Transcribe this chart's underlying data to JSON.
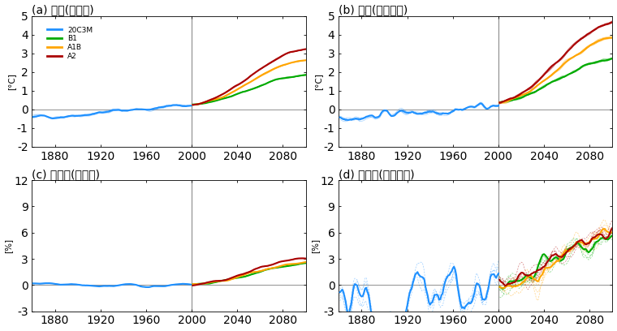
{
  "title_a": "(a) 기온(전지구)",
  "title_b": "(b) 기온(동아시아)",
  "title_c": "(c) 강수량(전지구)",
  "title_d": "(d) 강수량(동아시아)",
  "ylabel_temp": "[°C]",
  "ylabel_precip": "[%]",
  "xlim": [
    1860,
    2100
  ],
  "xticks": [
    1880,
    1920,
    1960,
    2000,
    2040,
    2080
  ],
  "ylim_temp": [
    -2.0,
    5.0
  ],
  "yticks_temp": [
    -2.0,
    -1.0,
    0.0,
    1.0,
    2.0,
    3.0,
    4.0,
    5.0
  ],
  "ylim_precip": [
    -3,
    12
  ],
  "yticks_precip": [
    -3,
    0,
    3,
    6,
    9,
    12
  ],
  "vline_x": 2000,
  "hline_y": 0,
  "colors": {
    "20C3M": "#1E90FF",
    "B1": "#00AA00",
    "A1B": "#FFA500",
    "A2": "#AA0000"
  },
  "legend_labels": [
    "20C3M",
    "B1",
    "A1B",
    "A2"
  ],
  "background": "#FFFFFF",
  "seed": 42
}
